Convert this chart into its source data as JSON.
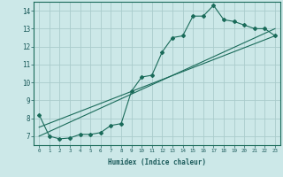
{
  "xlabel": "Humidex (Indice chaleur)",
  "ylabel": "",
  "background_color": "#cce8e8",
  "grid_color": "#aacccc",
  "line_color": "#1a6b5a",
  "xlim": [
    -0.5,
    23.5
  ],
  "ylim": [
    6.5,
    14.5
  ],
  "yticks": [
    7,
    8,
    9,
    10,
    11,
    12,
    13,
    14
  ],
  "xticks": [
    0,
    1,
    2,
    3,
    4,
    5,
    6,
    7,
    8,
    9,
    10,
    11,
    12,
    13,
    14,
    15,
    16,
    17,
    18,
    19,
    20,
    21,
    22,
    23
  ],
  "curve1_x": [
    0,
    1,
    2,
    3,
    4,
    5,
    6,
    7,
    8,
    9,
    10,
    11,
    12,
    13,
    14,
    15,
    16,
    17,
    18,
    19,
    20,
    21,
    22,
    23
  ],
  "curve1_y": [
    8.2,
    7.0,
    6.85,
    6.9,
    7.1,
    7.1,
    7.2,
    7.6,
    7.7,
    9.5,
    10.3,
    10.4,
    11.7,
    12.5,
    12.6,
    13.7,
    13.7,
    14.3,
    13.5,
    13.4,
    13.2,
    13.0,
    13.0,
    12.6
  ],
  "curve2_x": [
    0,
    23
  ],
  "curve2_y": [
    7.0,
    13.0
  ],
  "curve3_x": [
    0,
    23
  ],
  "curve3_y": [
    7.5,
    12.6
  ]
}
